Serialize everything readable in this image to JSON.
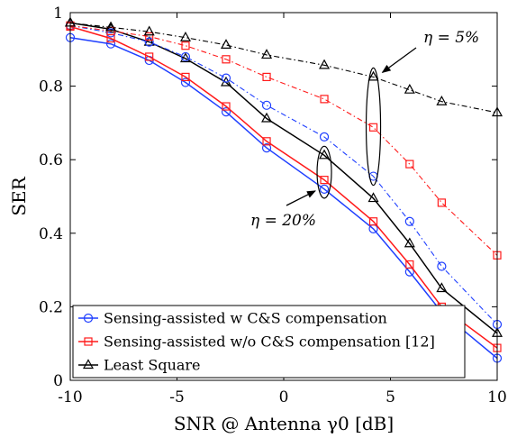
{
  "chart_data": {
    "type": "line",
    "xlabel": "SNR @ Antenna γ0 [dB]",
    "ylabel": "SER",
    "xlim": [
      -10,
      10
    ],
    "ylim": [
      0,
      1
    ],
    "xticks": [
      -10,
      -5,
      0,
      5,
      10
    ],
    "yticks": [
      0,
      0.2,
      0.4,
      0.6,
      0.8,
      1
    ],
    "xtick_labels": [
      "-10",
      "-5",
      "0",
      "5",
      "10"
    ],
    "ytick_labels": [
      "0",
      "0.2",
      "0.4",
      "0.6",
      "0.8",
      "1"
    ],
    "grid": false,
    "legend_position": "bottom-left",
    "x": [
      -10,
      -8.1,
      -6.3,
      -4.6,
      -2.7,
      -0.8,
      1.9,
      4.2,
      5.9,
      7.4,
      10
    ],
    "series": [
      {
        "name": "Sensing-assisted w C&S compensation",
        "group": "eta20",
        "color": "#1f3fff",
        "dash": "solid",
        "marker": "circle",
        "in_legend": true,
        "values": [
          0.932,
          0.915,
          0.87,
          0.81,
          0.73,
          0.632,
          0.52,
          0.412,
          0.295,
          0.185,
          0.06
        ]
      },
      {
        "name": "Sensing-assisted w/o C&S compensation [12]",
        "group": "eta20",
        "color": "#ff1a1a",
        "dash": "solid",
        "marker": "square",
        "in_legend": true,
        "values": [
          0.962,
          0.93,
          0.88,
          0.825,
          0.745,
          0.65,
          0.545,
          0.432,
          0.315,
          0.2,
          0.088
        ]
      },
      {
        "name": "Least Square",
        "group": "eta20",
        "color": "#000000",
        "dash": "solid",
        "marker": "triangle",
        "in_legend": true,
        "values": [
          0.972,
          0.955,
          0.92,
          0.875,
          0.81,
          0.712,
          0.612,
          0.495,
          0.372,
          0.25,
          0.128
        ]
      },
      {
        "name": "",
        "group": "eta5",
        "color": "#1f3fff",
        "dash": "dashdot",
        "marker": "circle",
        "in_legend": false,
        "values": [
          0.965,
          0.945,
          0.92,
          0.88,
          0.822,
          0.748,
          0.662,
          0.555,
          0.432,
          0.31,
          0.152
        ]
      },
      {
        "name": "",
        "group": "eta5",
        "color": "#ff1a1a",
        "dash": "dashdot",
        "marker": "square",
        "in_legend": false,
        "values": [
          0.965,
          0.95,
          0.935,
          0.91,
          0.873,
          0.825,
          0.765,
          0.688,
          0.588,
          0.483,
          0.34
        ]
      },
      {
        "name": "",
        "group": "eta5",
        "color": "#000000",
        "dash": "dashdot",
        "marker": "triangle",
        "in_legend": false,
        "values": [
          0.972,
          0.96,
          0.948,
          0.932,
          0.912,
          0.885,
          0.857,
          0.825,
          0.79,
          0.758,
          0.728
        ]
      }
    ],
    "annotations": [
      {
        "text": "η = 5%",
        "points_to": "eta5"
      },
      {
        "text": "η = 20%",
        "points_to": "eta20"
      }
    ]
  }
}
